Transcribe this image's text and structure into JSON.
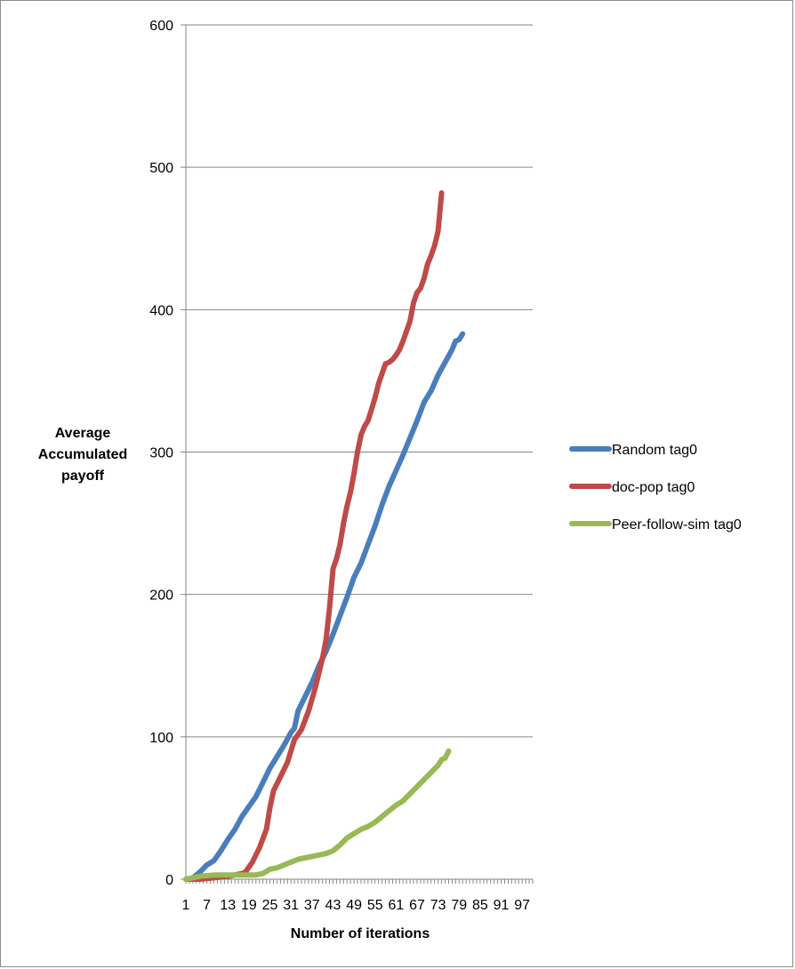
{
  "chart_data": {
    "type": "line",
    "title": "",
    "xlabel": "Number of iterations",
    "ylabel": [
      "Average",
      "Accumulated",
      "payoff"
    ],
    "xlim": [
      1,
      100
    ],
    "ylim": [
      0,
      600
    ],
    "y_ticks": [
      0,
      100,
      200,
      300,
      400,
      500,
      600
    ],
    "x_tick_labels": [
      1,
      7,
      13,
      19,
      25,
      31,
      37,
      43,
      49,
      55,
      61,
      67,
      73,
      79,
      85,
      91,
      97
    ],
    "grid": "horizontal",
    "legend_position": "right",
    "series": [
      {
        "name": "Random tag0",
        "color": "#4a7ebb",
        "points": [
          [
            1,
            0
          ],
          [
            3,
            1
          ],
          [
            5,
            5
          ],
          [
            7,
            10
          ],
          [
            9,
            13
          ],
          [
            11,
            20
          ],
          [
            13,
            28
          ],
          [
            15,
            35
          ],
          [
            17,
            44
          ],
          [
            19,
            51
          ],
          [
            21,
            58
          ],
          [
            23,
            68
          ],
          [
            25,
            78
          ],
          [
            27,
            86
          ],
          [
            29,
            94
          ],
          [
            31,
            103
          ],
          [
            32,
            106
          ],
          [
            33,
            118
          ],
          [
            35,
            128
          ],
          [
            37,
            138
          ],
          [
            39,
            150
          ],
          [
            41,
            160
          ],
          [
            43,
            172
          ],
          [
            45,
            185
          ],
          [
            47,
            198
          ],
          [
            49,
            212
          ],
          [
            51,
            222
          ],
          [
            53,
            235
          ],
          [
            55,
            248
          ],
          [
            57,
            263
          ],
          [
            59,
            276
          ],
          [
            61,
            287
          ],
          [
            63,
            298
          ],
          [
            65,
            310
          ],
          [
            67,
            322
          ],
          [
            69,
            335
          ],
          [
            71,
            343
          ],
          [
            73,
            354
          ],
          [
            75,
            363
          ],
          [
            77,
            372
          ],
          [
            78,
            378
          ],
          [
            79,
            379
          ],
          [
            80,
            383
          ]
        ]
      },
      {
        "name": "doc-pop tag0",
        "color": "#be4b48",
        "points": [
          [
            1,
            0
          ],
          [
            5,
            0
          ],
          [
            9,
            1
          ],
          [
            13,
            2
          ],
          [
            15,
            3
          ],
          [
            17,
            4
          ],
          [
            18,
            5
          ],
          [
            20,
            12
          ],
          [
            22,
            22
          ],
          [
            24,
            35
          ],
          [
            25,
            50
          ],
          [
            26,
            62
          ],
          [
            28,
            72
          ],
          [
            30,
            82
          ],
          [
            32,
            98
          ],
          [
            34,
            105
          ],
          [
            36,
            118
          ],
          [
            38,
            135
          ],
          [
            40,
            155
          ],
          [
            41,
            168
          ],
          [
            42,
            190
          ],
          [
            43,
            218
          ],
          [
            44,
            225
          ],
          [
            45,
            235
          ],
          [
            46,
            250
          ],
          [
            47,
            262
          ],
          [
            48,
            272
          ],
          [
            49,
            285
          ],
          [
            50,
            300
          ],
          [
            51,
            312
          ],
          [
            52,
            318
          ],
          [
            53,
            322
          ],
          [
            54,
            330
          ],
          [
            55,
            338
          ],
          [
            56,
            348
          ],
          [
            57,
            355
          ],
          [
            58,
            362
          ],
          [
            59,
            363
          ],
          [
            60,
            365
          ],
          [
            61,
            368
          ],
          [
            62,
            372
          ],
          [
            63,
            378
          ],
          [
            64,
            385
          ],
          [
            65,
            392
          ],
          [
            66,
            405
          ],
          [
            67,
            412
          ],
          [
            68,
            415
          ],
          [
            69,
            422
          ],
          [
            70,
            432
          ],
          [
            71,
            438
          ],
          [
            72,
            445
          ],
          [
            73,
            455
          ],
          [
            74,
            482
          ]
        ]
      },
      {
        "name": "Peer-follow-sim tag0",
        "color": "#98b954",
        "points": [
          [
            1,
            0
          ],
          [
            5,
            2
          ],
          [
            9,
            3
          ],
          [
            13,
            3
          ],
          [
            17,
            3
          ],
          [
            21,
            3
          ],
          [
            23,
            4
          ],
          [
            25,
            7
          ],
          [
            27,
            8
          ],
          [
            29,
            10
          ],
          [
            31,
            12
          ],
          [
            33,
            14
          ],
          [
            35,
            15
          ],
          [
            37,
            16
          ],
          [
            39,
            17
          ],
          [
            41,
            18
          ],
          [
            43,
            20
          ],
          [
            45,
            24
          ],
          [
            47,
            29
          ],
          [
            49,
            32
          ],
          [
            51,
            35
          ],
          [
            53,
            37
          ],
          [
            55,
            40
          ],
          [
            57,
            44
          ],
          [
            59,
            48
          ],
          [
            61,
            52
          ],
          [
            63,
            55
          ],
          [
            65,
            60
          ],
          [
            67,
            65
          ],
          [
            69,
            70
          ],
          [
            71,
            75
          ],
          [
            73,
            80
          ],
          [
            74,
            84
          ],
          [
            75,
            85
          ],
          [
            76,
            90
          ]
        ]
      }
    ]
  }
}
